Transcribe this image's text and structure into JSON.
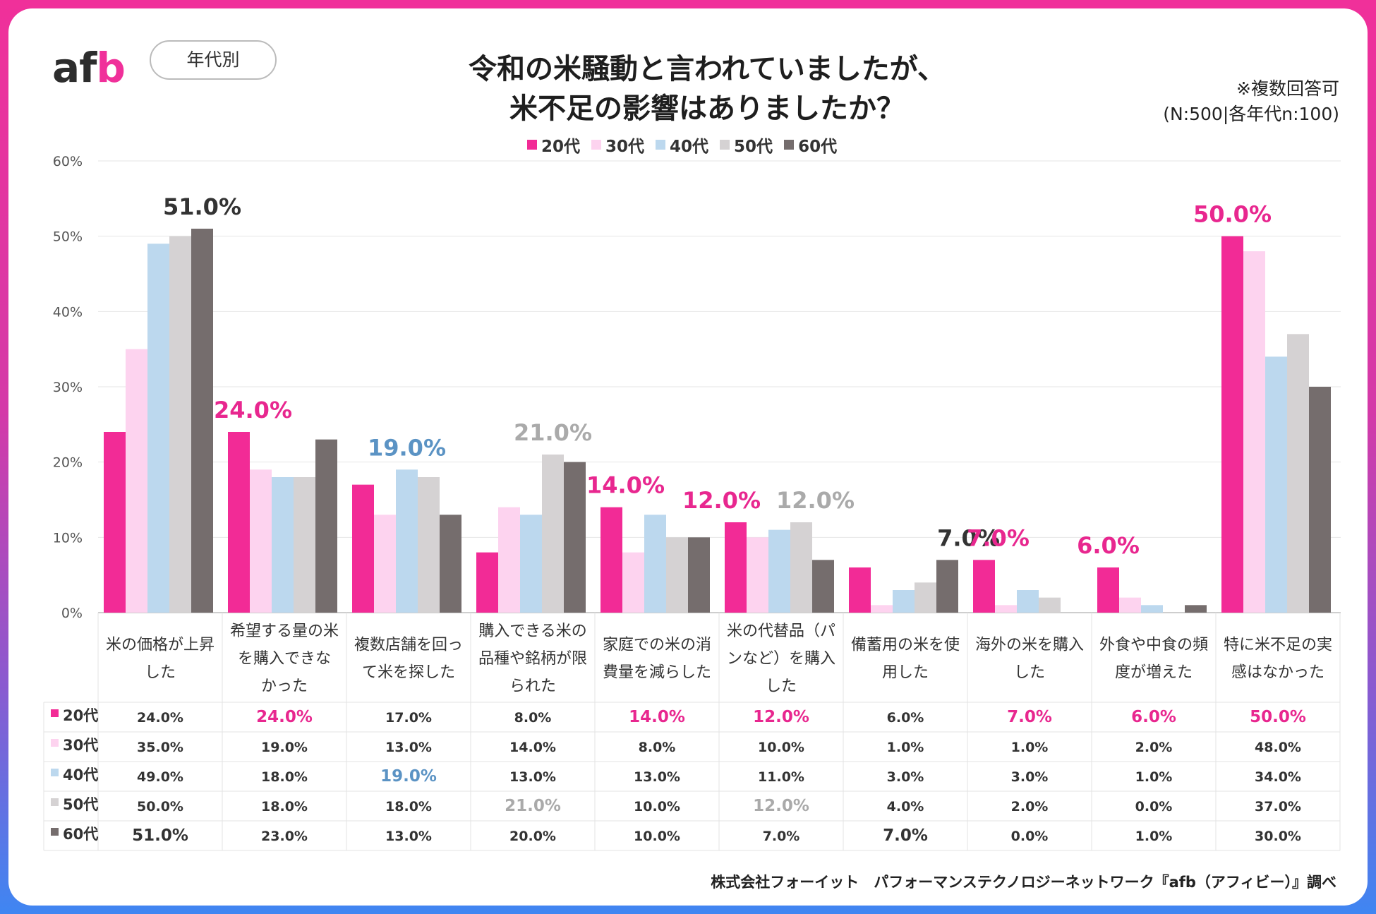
{
  "logo": {
    "text_a": "af",
    "text_b": "b"
  },
  "badge": "年代別",
  "title": {
    "line1": "令和の米騒動と言われていましたが、",
    "line2": "米不足の影響はありましたか？"
  },
  "note": {
    "line1": "※複数回答可",
    "line2": "(N:500|各年代n:100)"
  },
  "footer": "株式会社フォーイット　パフォーマンステクノロジーネットワーク『afb（アフィビー）』調べ",
  "chart_data": {
    "type": "bar",
    "title": "令和の米騒動と言われていましたが、米不足の影響はありましたか？",
    "ylim": [
      0,
      60
    ],
    "yticks": [
      "0%",
      "10%",
      "20%",
      "30%",
      "40%",
      "50%",
      "60%"
    ],
    "categories": [
      [
        "米の価格が上昇",
        "した"
      ],
      [
        "希望する量の米",
        "を購入できな",
        "かった"
      ],
      [
        "複数店舗を回っ",
        "て米を探した"
      ],
      [
        "購入できる米の",
        "品種や銘柄が限",
        "られた"
      ],
      [
        "家庭での米の消",
        "費量を減らした"
      ],
      [
        "米の代替品（パ",
        "ンなど）を購入",
        "した"
      ],
      [
        "備蓄用の米を使",
        "用した"
      ],
      [
        "海外の米を購入",
        "した"
      ],
      [
        "外食や中食の頻",
        "度が増えた"
      ],
      [
        "特に米不足の実",
        "感はなかった"
      ]
    ],
    "series": [
      {
        "name": "20代",
        "color": "#f22b96",
        "values": [
          24,
          24,
          17,
          8,
          14,
          12,
          6,
          7,
          6,
          50
        ],
        "labels": [
          "24.0%",
          "24.0%",
          "17.0%",
          "8.0%",
          "14.0%",
          "12.0%",
          "6.0%",
          "7.0%",
          "6.0%",
          "50.0%"
        ]
      },
      {
        "name": "30代",
        "color": "#fdd3ef",
        "values": [
          35,
          19,
          13,
          14,
          8,
          10,
          1,
          1,
          2,
          48
        ],
        "labels": [
          "35.0%",
          "19.0%",
          "13.0%",
          "14.0%",
          "8.0%",
          "10.0%",
          "1.0%",
          "1.0%",
          "2.0%",
          "48.0%"
        ]
      },
      {
        "name": "40代",
        "color": "#bcd8ee",
        "values": [
          49,
          18,
          19,
          13,
          13,
          11,
          3,
          3,
          1,
          34
        ],
        "labels": [
          "49.0%",
          "18.0%",
          "19.0%",
          "13.0%",
          "13.0%",
          "11.0%",
          "3.0%",
          "3.0%",
          "1.0%",
          "34.0%"
        ]
      },
      {
        "name": "50代",
        "color": "#d5d2d3",
        "values": [
          50,
          18,
          18,
          21,
          10,
          12,
          4,
          2,
          0,
          37
        ],
        "labels": [
          "50.0%",
          "18.0%",
          "18.0%",
          "21.0%",
          "10.0%",
          "12.0%",
          "4.0%",
          "2.0%",
          "0.0%",
          "37.0%"
        ]
      },
      {
        "name": "60代",
        "color": "#756d6d",
        "values": [
          51,
          23,
          13,
          20,
          10,
          7,
          7,
          0,
          1,
          30
        ],
        "labels": [
          "51.0%",
          "23.0%",
          "13.0%",
          "20.0%",
          "10.0%",
          "7.0%",
          "7.0%",
          "0.0%",
          "1.0%",
          "30.0%"
        ]
      }
    ],
    "highlights": [
      {
        "category": 0,
        "series": 4,
        "label": "51.0%",
        "color": "#333333"
      },
      {
        "category": 1,
        "series": 0,
        "label": "24.0%",
        "color": "#e8278f"
      },
      {
        "category": 2,
        "series": 2,
        "label": "19.0%",
        "color": "#5b93c4"
      },
      {
        "category": 3,
        "series": 3,
        "label": "21.0%",
        "color": "#aaaaaa"
      },
      {
        "category": 4,
        "series": 0,
        "label": "14.0%",
        "color": "#e8278f"
      },
      {
        "category": 5,
        "series": 0,
        "label": "12.0%",
        "color": "#e8278f"
      },
      {
        "category": 5,
        "series": 3,
        "label": "12.0%",
        "color": "#aaaaaa"
      },
      {
        "category": 6,
        "series": 4,
        "label": "7.0%",
        "color": "#333333"
      },
      {
        "category": 7,
        "series": 0,
        "label": "7.0%",
        "color": "#e8278f"
      },
      {
        "category": 8,
        "series": 0,
        "label": "6.0%",
        "color": "#e8278f"
      },
      {
        "category": 9,
        "series": 0,
        "label": "50.0%",
        "color": "#e8278f"
      }
    ]
  }
}
